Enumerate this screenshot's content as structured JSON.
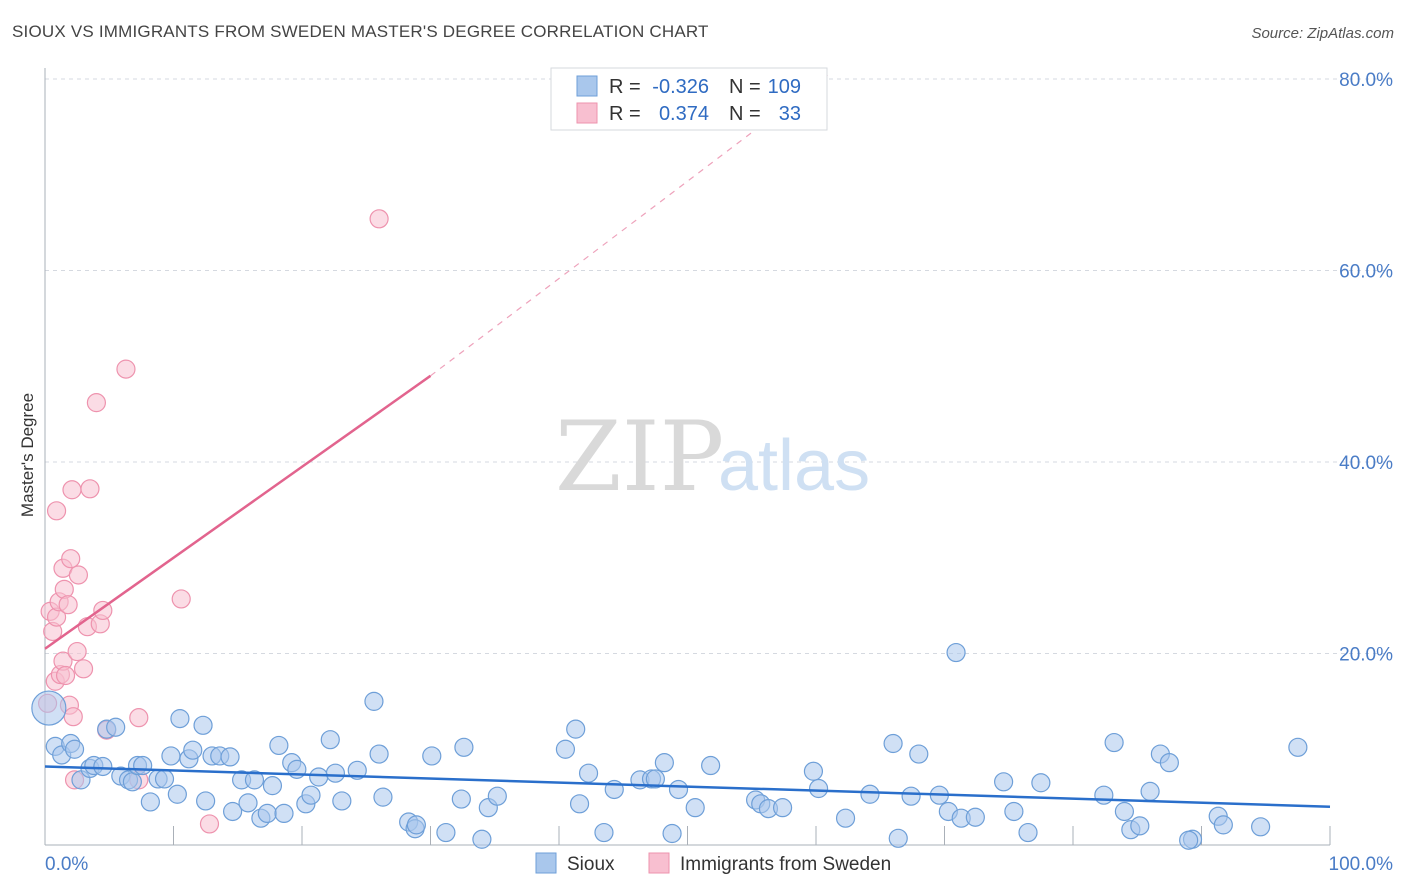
{
  "title": "SIOUX VS IMMIGRANTS FROM SWEDEN MASTER'S DEGREE CORRELATION CHART",
  "source": "Source: ZipAtlas.com",
  "watermark": {
    "zip": "ZIP",
    "atlas": "atlas"
  },
  "colors": {
    "sioux_fill": "#a9c7ec",
    "sioux_stroke": "#6e9fd8",
    "sioux_line": "#2a6fcb",
    "sweden_fill": "#f8bfd0",
    "sweden_stroke": "#ee93ae",
    "sweden_line": "#e2648e",
    "grid": "#d5d9e0",
    "axis": "#aab0b8"
  },
  "legend": {
    "rows": [
      {
        "r_label": "R =",
        "r_value": "-0.326",
        "n_label": "N =",
        "n_value": "109",
        "series": "sioux"
      },
      {
        "r_label": "R =",
        "r_value": "0.374",
        "n_label": "N =",
        "n_value": "33",
        "series": "sweden"
      }
    ]
  },
  "bottom_legend": [
    {
      "label": "Sioux",
      "series": "sioux"
    },
    {
      "label": "Immigrants from Sweden",
      "series": "sweden"
    }
  ],
  "chart_data": {
    "type": "scatter",
    "title": "SIOUX VS IMMIGRANTS FROM SWEDEN MASTER'S DEGREE CORRELATION CHART",
    "xlabel": "",
    "ylabel": "Master's Degree",
    "xlim": [
      0,
      100
    ],
    "ylim": [
      0,
      80
    ],
    "x_tick_labels": [
      "0.0%",
      "100.0%"
    ],
    "y_ticks": [
      20,
      40,
      60,
      80
    ],
    "y_tick_labels": [
      "20.0%",
      "40.0%",
      "60.0%",
      "80.0%"
    ],
    "grid": true,
    "legend_position": "top-center",
    "series": [
      {
        "name": "Sioux",
        "key": "sioux",
        "r": -0.326,
        "n": 109,
        "trend": {
          "x": [
            0,
            100
          ],
          "y": [
            8.2,
            4.0
          ]
        },
        "points": [
          [
            0.3,
            14.3
          ],
          [
            0.8,
            10.3
          ],
          [
            1.3,
            9.4
          ],
          [
            2.0,
            10.6
          ],
          [
            2.3,
            10.0
          ],
          [
            2.8,
            6.8
          ],
          [
            3.5,
            8.0
          ],
          [
            3.8,
            8.3
          ],
          [
            4.5,
            8.2
          ],
          [
            4.8,
            12.1
          ],
          [
            5.5,
            12.3
          ],
          [
            5.9,
            7.2
          ],
          [
            6.5,
            6.8
          ],
          [
            6.8,
            6.6
          ],
          [
            7.2,
            8.3
          ],
          [
            7.6,
            8.3
          ],
          [
            8.2,
            4.5
          ],
          [
            8.8,
            6.9
          ],
          [
            9.3,
            6.9
          ],
          [
            9.8,
            9.3
          ],
          [
            10.3,
            5.3
          ],
          [
            10.5,
            13.2
          ],
          [
            11.2,
            9.0
          ],
          [
            11.5,
            9.9
          ],
          [
            12.3,
            12.5
          ],
          [
            12.5,
            4.6
          ],
          [
            13.0,
            9.3
          ],
          [
            13.6,
            9.3
          ],
          [
            14.4,
            9.2
          ],
          [
            14.6,
            3.5
          ],
          [
            15.3,
            6.8
          ],
          [
            15.8,
            4.4
          ],
          [
            16.3,
            6.8
          ],
          [
            16.8,
            2.8
          ],
          [
            17.3,
            3.3
          ],
          [
            17.7,
            6.2
          ],
          [
            18.2,
            10.4
          ],
          [
            18.6,
            3.3
          ],
          [
            19.2,
            8.6
          ],
          [
            19.6,
            7.9
          ],
          [
            20.3,
            4.3
          ],
          [
            20.7,
            5.2
          ],
          [
            21.3,
            7.1
          ],
          [
            22.2,
            11.0
          ],
          [
            22.6,
            7.5
          ],
          [
            23.1,
            4.6
          ],
          [
            24.3,
            7.8
          ],
          [
            25.6,
            15.0
          ],
          [
            26.0,
            9.5
          ],
          [
            26.3,
            5.0
          ],
          [
            28.3,
            2.4
          ],
          [
            28.8,
            1.7
          ],
          [
            28.9,
            2.1
          ],
          [
            30.1,
            9.3
          ],
          [
            31.2,
            1.3
          ],
          [
            32.4,
            4.8
          ],
          [
            32.6,
            10.2
          ],
          [
            34.0,
            0.6
          ],
          [
            34.5,
            3.9
          ],
          [
            35.2,
            5.1
          ],
          [
            40.5,
            10.0
          ],
          [
            41.3,
            12.1
          ],
          [
            41.6,
            4.3
          ],
          [
            42.3,
            7.5
          ],
          [
            43.5,
            1.3
          ],
          [
            44.3,
            5.8
          ],
          [
            46.3,
            6.8
          ],
          [
            47.2,
            6.9
          ],
          [
            47.5,
            6.9
          ],
          [
            48.2,
            8.6
          ],
          [
            48.8,
            1.2
          ],
          [
            49.3,
            5.8
          ],
          [
            50.6,
            3.9
          ],
          [
            51.8,
            8.3
          ],
          [
            55.3,
            4.7
          ],
          [
            55.7,
            4.3
          ],
          [
            56.3,
            3.8
          ],
          [
            57.4,
            3.9
          ],
          [
            59.8,
            7.7
          ],
          [
            60.2,
            5.9
          ],
          [
            62.3,
            2.8
          ],
          [
            64.2,
            5.3
          ],
          [
            66.0,
            10.6
          ],
          [
            66.4,
            0.7
          ],
          [
            67.4,
            5.1
          ],
          [
            68.0,
            9.5
          ],
          [
            69.6,
            5.2
          ],
          [
            70.3,
            3.5
          ],
          [
            70.9,
            20.1
          ],
          [
            71.3,
            2.8
          ],
          [
            72.4,
            2.9
          ],
          [
            74.6,
            6.6
          ],
          [
            75.4,
            3.5
          ],
          [
            76.5,
            1.3
          ],
          [
            77.5,
            6.5
          ],
          [
            82.4,
            5.2
          ],
          [
            83.2,
            10.7
          ],
          [
            84.0,
            3.5
          ],
          [
            84.5,
            1.6
          ],
          [
            85.2,
            2.0
          ],
          [
            86.0,
            5.6
          ],
          [
            86.8,
            9.5
          ],
          [
            87.5,
            8.6
          ],
          [
            89.3,
            0.6
          ],
          [
            91.3,
            3.0
          ],
          [
            91.7,
            2.1
          ],
          [
            94.6,
            1.9
          ],
          [
            97.5,
            10.2
          ],
          [
            89.0,
            0.5
          ]
        ]
      },
      {
        "name": "Immigrants from Sweden",
        "key": "sweden",
        "r": 0.374,
        "n": 33,
        "trend": {
          "x": [
            0,
            30
          ],
          "y": [
            20.5,
            49.0
          ]
        },
        "trend_extension": {
          "x": [
            30,
            61
          ],
          "y": [
            49.0,
            80.5
          ]
        },
        "points": [
          [
            0.4,
            24.4
          ],
          [
            0.6,
            22.3
          ],
          [
            0.8,
            17.1
          ],
          [
            0.9,
            23.8
          ],
          [
            0.9,
            34.9
          ],
          [
            1.1,
            25.4
          ],
          [
            1.2,
            17.8
          ],
          [
            1.4,
            19.2
          ],
          [
            1.4,
            28.9
          ],
          [
            1.5,
            26.7
          ],
          [
            1.6,
            17.7
          ],
          [
            1.8,
            25.1
          ],
          [
            1.9,
            14.6
          ],
          [
            2.0,
            29.9
          ],
          [
            2.1,
            37.1
          ],
          [
            2.2,
            13.4
          ],
          [
            2.3,
            6.8
          ],
          [
            2.5,
            20.2
          ],
          [
            2.6,
            28.2
          ],
          [
            3.0,
            18.4
          ],
          [
            3.3,
            22.8
          ],
          [
            3.5,
            37.2
          ],
          [
            4.0,
            46.2
          ],
          [
            4.3,
            23.1
          ],
          [
            4.5,
            24.5
          ],
          [
            4.8,
            12.0
          ],
          [
            6.3,
            49.7
          ],
          [
            7.3,
            6.8
          ],
          [
            7.3,
            13.3
          ],
          [
            10.6,
            25.7
          ],
          [
            12.8,
            2.2
          ],
          [
            26.0,
            65.4
          ],
          [
            0.2,
            14.8
          ]
        ]
      }
    ]
  }
}
